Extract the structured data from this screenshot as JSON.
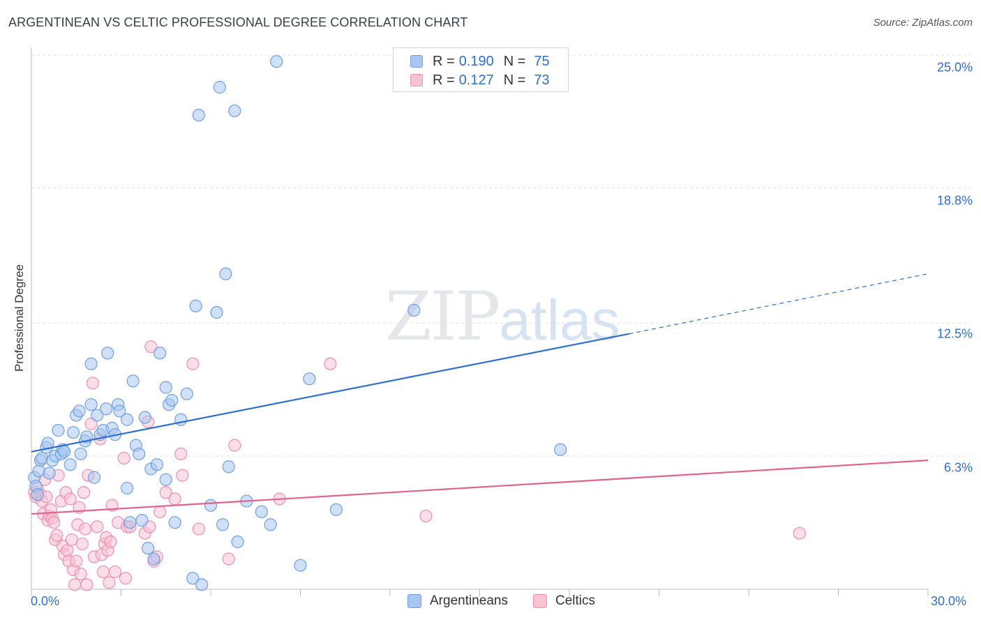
{
  "title": "ARGENTINEAN VS CELTIC PROFESSIONAL DEGREE CORRELATION CHART",
  "source": "Source: ZipAtlas.com",
  "watermark": {
    "zip": "ZIP",
    "atlas": "atlas"
  },
  "legend": {
    "rows": [
      {
        "r_label": "R =",
        "r": "0.190",
        "n_label": "N =",
        "n": "75",
        "color": "#a8c6f0",
        "border": "#6f9fe0"
      },
      {
        "r_label": "R =",
        "r": "0.127",
        "n_label": "N =",
        "n": "73",
        "color": "#f8c3d3",
        "border": "#ee8fae"
      }
    ]
  },
  "bottom_legend": [
    {
      "label": "Argentineans",
      "color": "#a8c6f0",
      "border": "#6f9fe0"
    },
    {
      "label": "Celtics",
      "color": "#f8c3d3",
      "border": "#ee8fae"
    }
  ],
  "x_tick_labels": {
    "min": "0.0%",
    "max": "30.0%"
  },
  "y_tick_labels": [
    "25.0%",
    "18.8%",
    "12.5%",
    "6.3%"
  ],
  "chart_data": {
    "type": "scatter",
    "title": "ARGENTINEAN VS CELTIC PROFESSIONAL DEGREE CORRELATION CHART",
    "xlabel": "",
    "ylabel": "Professional Degree",
    "xlim": [
      0,
      30
    ],
    "ylim": [
      0,
      25.9
    ],
    "y_ticks": [
      6.3,
      12.5,
      18.8,
      25.0
    ],
    "x_ticks": [
      0,
      3,
      6,
      9,
      12,
      15,
      18,
      21,
      24,
      27,
      30
    ],
    "series": [
      {
        "name": "Argentineans",
        "color": "#6f9fe0",
        "fill": "#a8c6f0",
        "line_color": "#2f6fd0",
        "trend": {
          "x0": 0,
          "y0": 6.5,
          "x1": 20.0,
          "y1": 12.0,
          "dash_to_x": 30,
          "dash_to_y": 14.8
        },
        "points": [
          [
            0.1,
            5.3
          ],
          [
            0.15,
            4.9
          ],
          [
            0.2,
            4.5
          ],
          [
            0.25,
            5.6
          ],
          [
            0.3,
            6.1
          ],
          [
            0.35,
            6.2
          ],
          [
            0.5,
            6.7
          ],
          [
            0.55,
            6.9
          ],
          [
            0.6,
            5.5
          ],
          [
            0.7,
            6.1
          ],
          [
            0.8,
            6.3
          ],
          [
            0.9,
            7.5
          ],
          [
            1.0,
            6.4
          ],
          [
            1.05,
            6.6
          ],
          [
            1.1,
            6.5
          ],
          [
            1.3,
            5.9
          ],
          [
            1.4,
            7.4
          ],
          [
            1.5,
            8.2
          ],
          [
            1.6,
            8.4
          ],
          [
            1.65,
            6.4
          ],
          [
            1.8,
            7.0
          ],
          [
            1.85,
            7.2
          ],
          [
            2.0,
            10.6
          ],
          [
            2.0,
            8.7
          ],
          [
            2.1,
            5.3
          ],
          [
            2.2,
            8.2
          ],
          [
            2.3,
            7.3
          ],
          [
            2.4,
            7.5
          ],
          [
            2.5,
            8.5
          ],
          [
            2.55,
            11.1
          ],
          [
            2.7,
            7.6
          ],
          [
            2.8,
            7.3
          ],
          [
            2.9,
            8.7
          ],
          [
            2.95,
            8.4
          ],
          [
            3.2,
            4.8
          ],
          [
            3.2,
            8.0
          ],
          [
            3.3,
            3.2
          ],
          [
            3.4,
            9.8
          ],
          [
            3.5,
            6.8
          ],
          [
            3.6,
            6.4
          ],
          [
            3.7,
            3.3
          ],
          [
            3.8,
            8.1
          ],
          [
            3.9,
            2.0
          ],
          [
            4.0,
            5.7
          ],
          [
            4.1,
            1.5
          ],
          [
            4.2,
            5.9
          ],
          [
            4.3,
            11.1
          ],
          [
            4.5,
            5.2
          ],
          [
            4.5,
            9.5
          ],
          [
            4.6,
            8.7
          ],
          [
            4.7,
            8.9
          ],
          [
            4.8,
            3.2
          ],
          [
            5.0,
            8.0
          ],
          [
            5.2,
            9.2
          ],
          [
            5.4,
            0.6
          ],
          [
            5.5,
            13.3
          ],
          [
            5.6,
            22.2
          ],
          [
            5.7,
            0.3
          ],
          [
            6.0,
            4.0
          ],
          [
            6.2,
            13.0
          ],
          [
            6.3,
            23.5
          ],
          [
            6.4,
            3.1
          ],
          [
            6.5,
            14.8
          ],
          [
            6.6,
            5.8
          ],
          [
            6.8,
            22.4
          ],
          [
            6.9,
            2.3
          ],
          [
            7.2,
            4.2
          ],
          [
            7.7,
            3.7
          ],
          [
            8.0,
            3.1
          ],
          [
            8.2,
            24.7
          ],
          [
            9.0,
            1.2
          ],
          [
            9.3,
            9.9
          ],
          [
            10.2,
            3.8
          ],
          [
            12.8,
            13.1
          ],
          [
            17.7,
            6.6
          ]
        ]
      },
      {
        "name": "Celtics",
        "color": "#ee8fae",
        "fill": "#f8c3d3",
        "line_color": "#e0628d",
        "trend": {
          "x0": 0,
          "y0": 3.6,
          "x1": 30,
          "y1": 6.1
        },
        "points": [
          [
            0.1,
            4.6
          ],
          [
            0.15,
            4.4
          ],
          [
            0.2,
            4.8
          ],
          [
            0.3,
            4.5
          ],
          [
            0.35,
            4.2
          ],
          [
            0.4,
            3.6
          ],
          [
            0.45,
            5.2
          ],
          [
            0.5,
            4.4
          ],
          [
            0.55,
            3.3
          ],
          [
            0.6,
            3.5
          ],
          [
            0.65,
            3.8
          ],
          [
            0.7,
            3.4
          ],
          [
            0.75,
            3.2
          ],
          [
            0.8,
            2.4
          ],
          [
            0.85,
            2.6
          ],
          [
            0.9,
            5.4
          ],
          [
            1.0,
            4.2
          ],
          [
            1.05,
            2.1
          ],
          [
            1.1,
            1.7
          ],
          [
            1.15,
            4.6
          ],
          [
            1.2,
            1.9
          ],
          [
            1.25,
            1.4
          ],
          [
            1.3,
            4.3
          ],
          [
            1.35,
            2.4
          ],
          [
            1.4,
            1.0
          ],
          [
            1.45,
            0.3
          ],
          [
            1.5,
            1.4
          ],
          [
            1.55,
            3.1
          ],
          [
            1.6,
            3.9
          ],
          [
            1.65,
            0.8
          ],
          [
            1.7,
            2.2
          ],
          [
            1.75,
            4.6
          ],
          [
            1.8,
            2.9
          ],
          [
            1.85,
            0.3
          ],
          [
            1.9,
            5.4
          ],
          [
            2.0,
            7.8
          ],
          [
            2.05,
            9.7
          ],
          [
            2.1,
            1.6
          ],
          [
            2.2,
            3.0
          ],
          [
            2.3,
            7.1
          ],
          [
            2.35,
            1.7
          ],
          [
            2.4,
            0.9
          ],
          [
            2.45,
            2.2
          ],
          [
            2.5,
            2.5
          ],
          [
            2.55,
            1.9
          ],
          [
            2.6,
            0.4
          ],
          [
            2.65,
            2.3
          ],
          [
            2.7,
            4.0
          ],
          [
            2.8,
            0.9
          ],
          [
            2.9,
            3.2
          ],
          [
            3.1,
            6.2
          ],
          [
            3.15,
            0.6
          ],
          [
            3.2,
            3.0
          ],
          [
            3.3,
            3.0
          ],
          [
            3.8,
            2.7
          ],
          [
            3.9,
            7.9
          ],
          [
            3.95,
            3.0
          ],
          [
            4.0,
            11.4
          ],
          [
            4.1,
            1.4
          ],
          [
            4.2,
            1.6
          ],
          [
            4.3,
            3.7
          ],
          [
            4.5,
            4.6
          ],
          [
            4.8,
            4.3
          ],
          [
            5.0,
            6.4
          ],
          [
            5.05,
            5.4
          ],
          [
            5.4,
            10.6
          ],
          [
            5.6,
            2.9
          ],
          [
            6.6,
            1.5
          ],
          [
            6.8,
            6.8
          ],
          [
            8.3,
            4.3
          ],
          [
            10.0,
            10.6
          ],
          [
            13.2,
            3.5
          ],
          [
            25.7,
            2.7
          ]
        ]
      }
    ]
  }
}
